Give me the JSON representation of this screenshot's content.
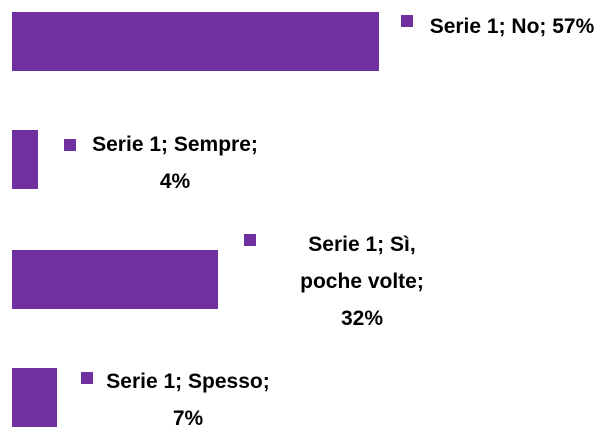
{
  "chart_data": {
    "type": "bar",
    "orientation": "horizontal",
    "categories": [
      "No",
      "Sempre",
      "Sì, poche volte",
      "Spesso"
    ],
    "series": [
      {
        "name": "Serie 1",
        "color": "#7030a0",
        "values": [
          57,
          4,
          32,
          7
        ],
        "value_labels": [
          "Serie 1; No; 57%",
          "Serie 1; Sempre; 4%",
          "Serie 1; Sì, poche volte; 32%",
          "Serie 1; Spesso; 7%"
        ]
      }
    ]
  }
}
